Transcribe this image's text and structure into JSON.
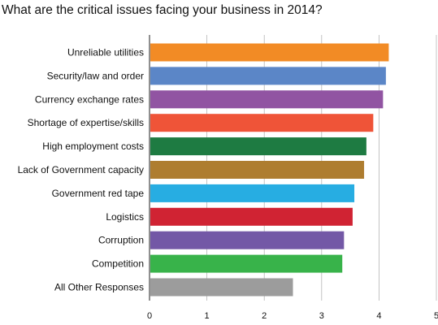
{
  "chart_data": {
    "type": "bar",
    "orientation": "horizontal",
    "title": "What are the critical issues facing your business in 2014?",
    "xlabel": "",
    "ylabel": "",
    "xlim": [
      0,
      5
    ],
    "xticks": [
      "0",
      "1",
      "2",
      "3",
      "4",
      "5"
    ],
    "grid": "vertical",
    "legend": "none",
    "categories": [
      "Unreliable utilities",
      "Security/law and order",
      "Currency exchange rates",
      "Shortage of expertise/skills",
      "High employment costs",
      "Lack of Government capacity",
      "Government red tape",
      "Logistics",
      "Corruption",
      "Competition",
      "All Other Responses"
    ],
    "values": [
      4.17,
      4.12,
      4.07,
      3.9,
      3.78,
      3.74,
      3.57,
      3.54,
      3.39,
      3.36,
      2.5
    ],
    "colors": [
      "#f28b25",
      "#5b86c7",
      "#9154a2",
      "#ef5438",
      "#1e7b42",
      "#ae7d30",
      "#27ade2",
      "#d02333",
      "#7358a6",
      "#38b34a",
      "#9c9c9c"
    ]
  }
}
